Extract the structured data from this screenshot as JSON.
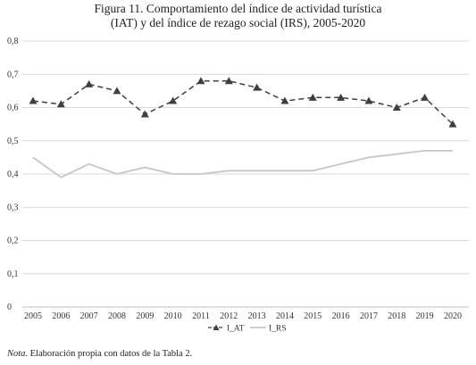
{
  "figure": {
    "title_line1": "Figura 11. Comportamiento del índice de actividad turística",
    "title_line2": "(IAT) y del índice de rezago social (IRS), 2005-2020",
    "note_label": "Nota",
    "note_text": ". Elaboración propia con datos de la Tabla 2."
  },
  "colors": {
    "iat": "#3f3f3f",
    "irs": "#c6c6c6",
    "grid": "#dadada",
    "axis": "#c0c0c0"
  },
  "chart_data": {
    "type": "line",
    "categories": [
      "2005",
      "2006",
      "2007",
      "2008",
      "2009",
      "2010",
      "2011",
      "2012",
      "2013",
      "2014",
      "2015",
      "2016",
      "2017",
      "2018",
      "2019",
      "2020"
    ],
    "series": [
      {
        "name": "I_AT",
        "style": "dashed-triangle",
        "values": [
          0.62,
          0.61,
          0.67,
          0.65,
          0.58,
          0.62,
          0.68,
          0.68,
          0.66,
          0.62,
          0.63,
          0.63,
          0.62,
          0.6,
          0.63,
          0.55
        ]
      },
      {
        "name": "I_RS",
        "style": "solid",
        "values": [
          0.45,
          0.39,
          0.43,
          0.4,
          0.42,
          0.4,
          0.4,
          0.41,
          0.41,
          0.41,
          0.41,
          0.43,
          0.45,
          0.46,
          0.47,
          0.47
        ]
      }
    ],
    "yticks": [
      "0",
      "0,1",
      "0,2",
      "0,3",
      "0,4",
      "0,5",
      "0,6",
      "0,7",
      "0,8"
    ],
    "ylim": [
      0,
      0.8
    ],
    "grid": true,
    "legend_position": "bottom"
  }
}
